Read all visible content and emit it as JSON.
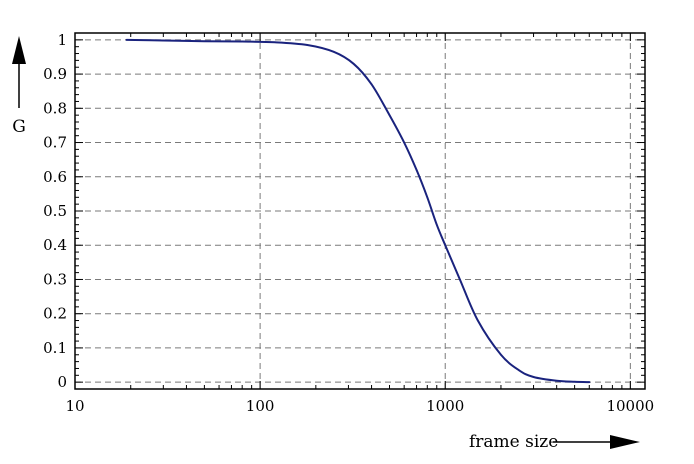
{
  "chart_data": {
    "type": "line",
    "xscale": "log",
    "xlim": [
      10,
      12000
    ],
    "ylim": [
      -0.02,
      1.02
    ],
    "xlabel": "frame size",
    "ylabel": "G",
    "x_ticks": [
      10,
      100,
      1000,
      10000
    ],
    "x_tick_labels": [
      "10",
      "100",
      "1000",
      "10000"
    ],
    "y_ticks": [
      0,
      0.1,
      0.2,
      0.3,
      0.4,
      0.5,
      0.6,
      0.7,
      0.8,
      0.9,
      1
    ],
    "y_tick_labels": [
      "0",
      "0.1",
      "0.2",
      "0.3",
      "0.4",
      "0.5",
      "0.6",
      "0.7",
      "0.8",
      "0.9",
      "1"
    ],
    "grid": true,
    "series": [
      {
        "color": "#1a237e",
        "x": [
          19,
          30,
          50,
          80,
          120,
          180,
          250,
          320,
          400,
          500,
          600,
          700,
          800,
          900,
          1000,
          1200,
          1500,
          2000,
          2500,
          3000,
          4000,
          5000,
          6000
        ],
        "y": [
          1.0,
          0.998,
          0.996,
          0.995,
          0.993,
          0.985,
          0.965,
          0.93,
          0.87,
          0.78,
          0.7,
          0.62,
          0.54,
          0.46,
          0.4,
          0.3,
          0.18,
          0.08,
          0.035,
          0.015,
          0.004,
          0.001,
          0.0
        ]
      }
    ]
  }
}
